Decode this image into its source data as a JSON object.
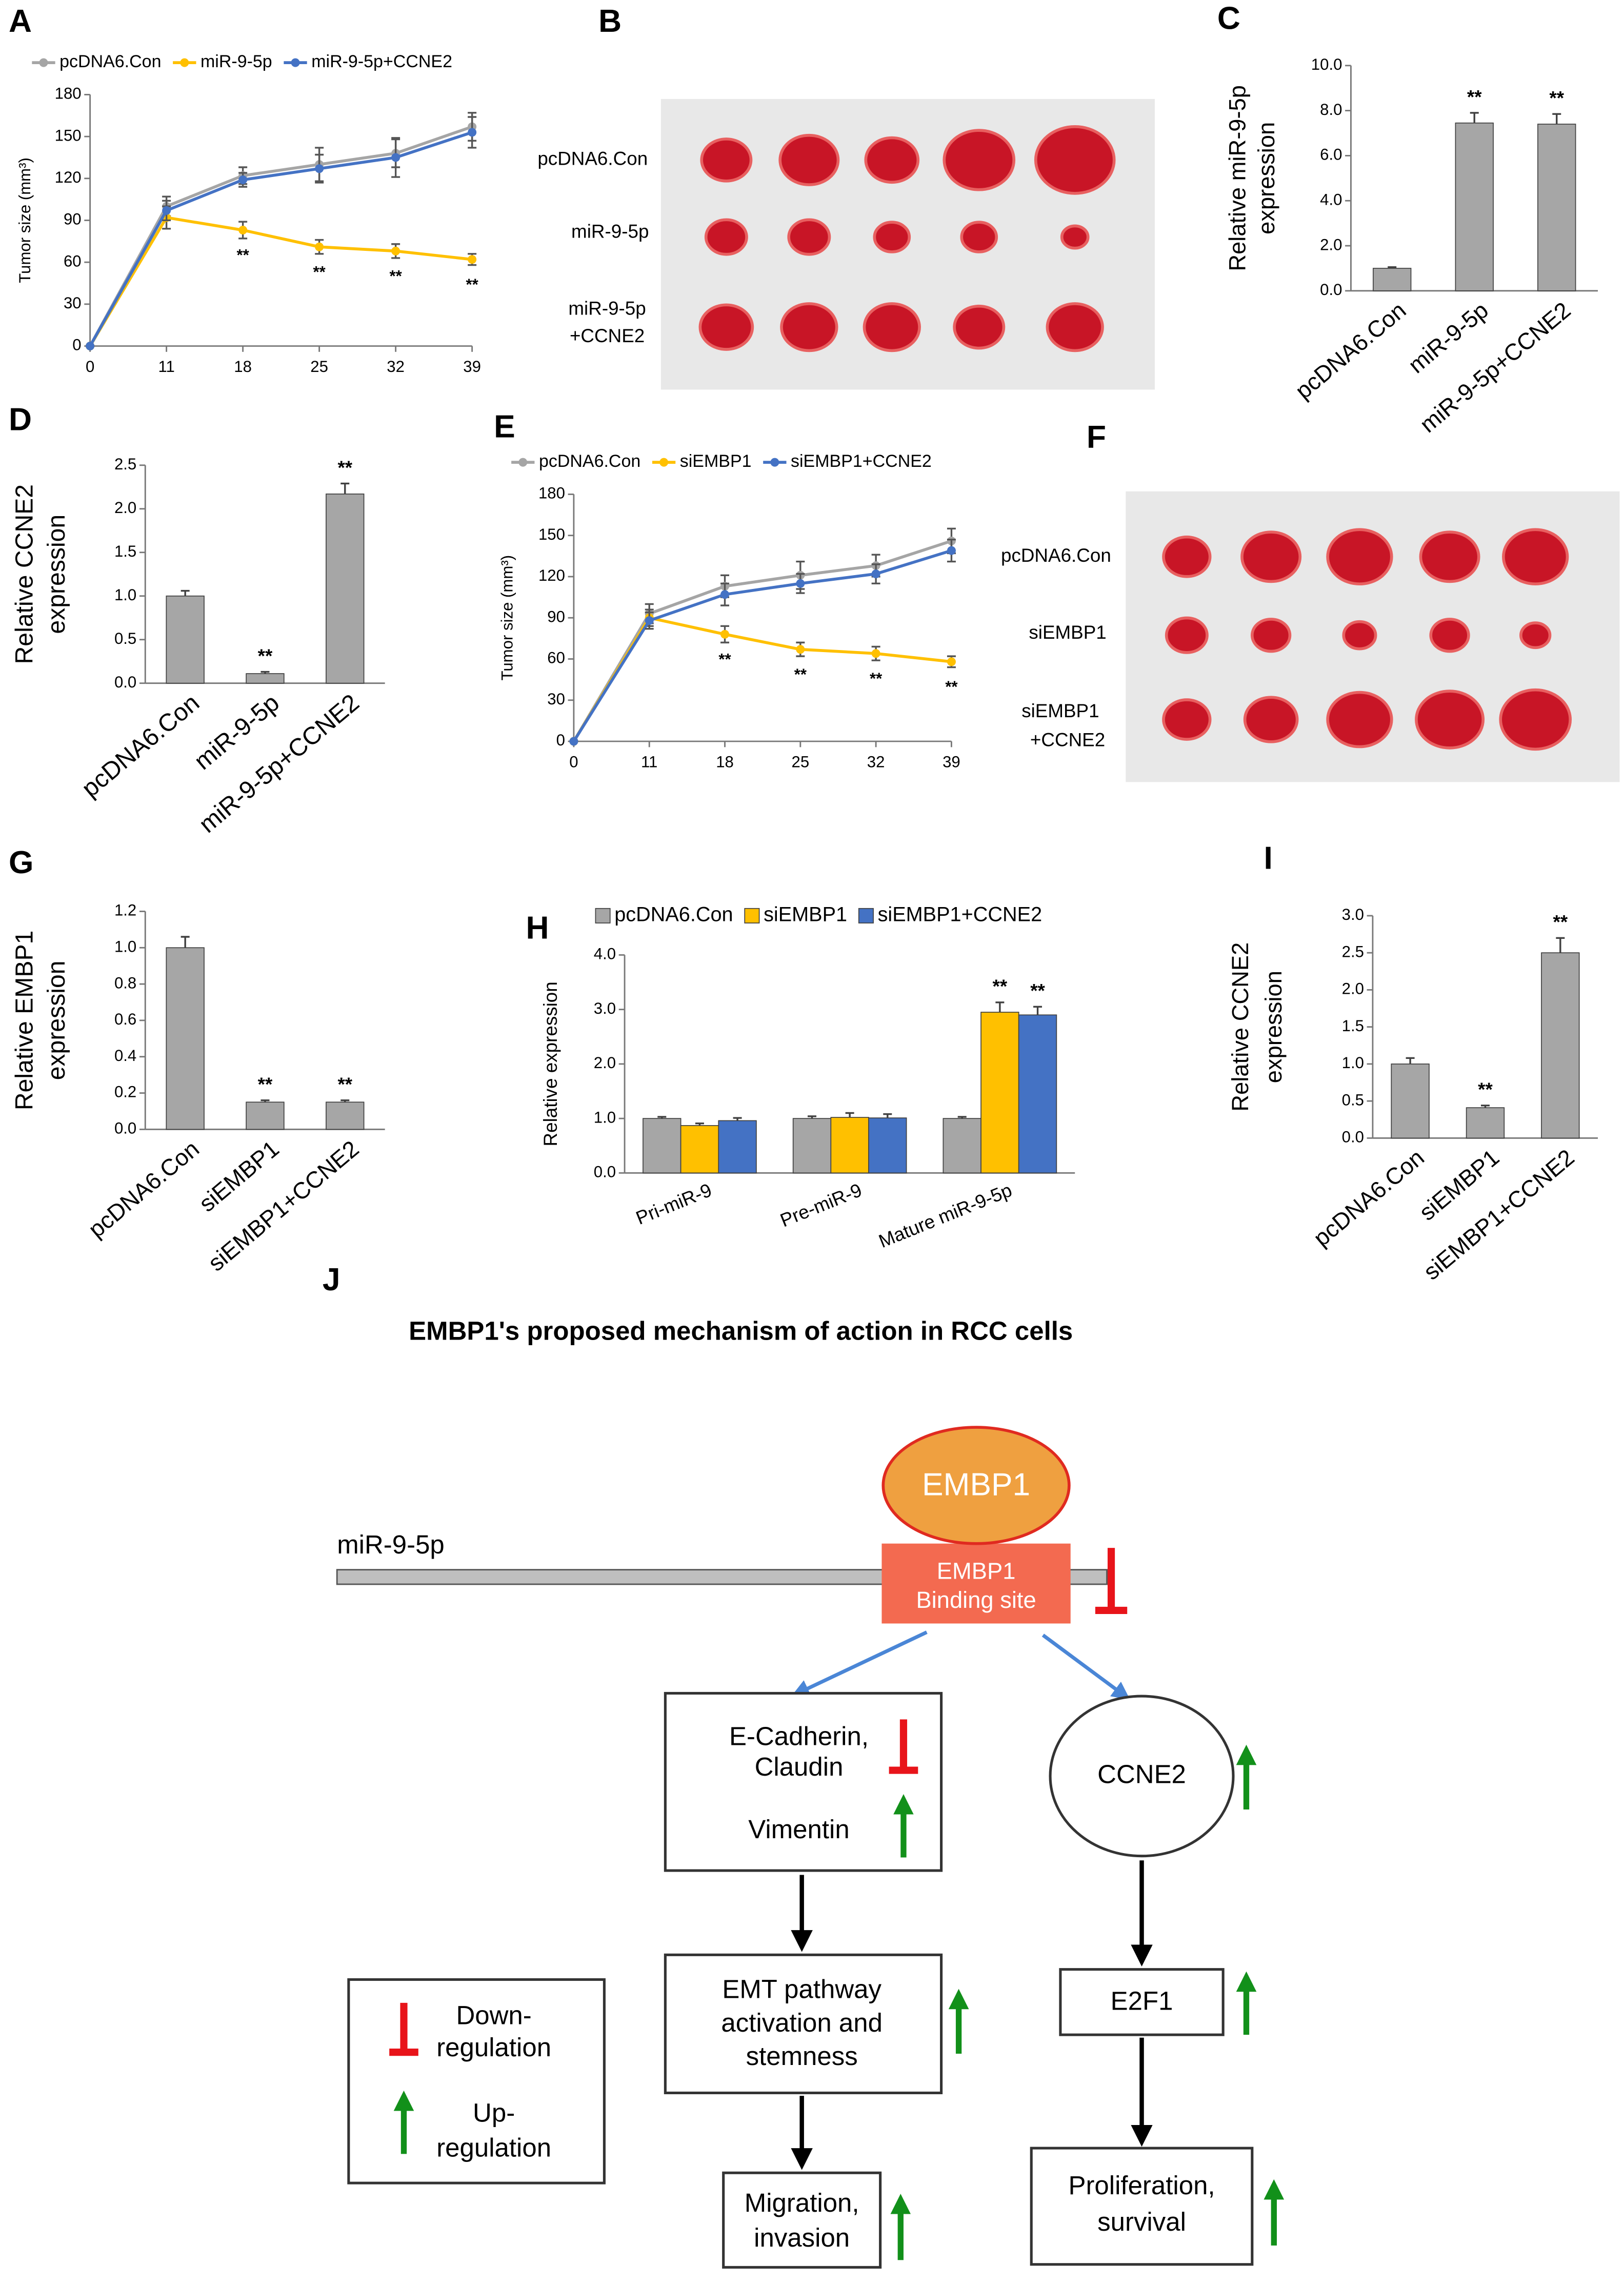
{
  "chart_data": [
    {
      "type": "line",
      "label": "A",
      "ylabel": "Tumor size (mm³)",
      "categories": [
        "0",
        "11",
        "18",
        "25",
        "32",
        "39"
      ],
      "ylim": [
        0,
        180
      ],
      "yticks": [
        0,
        30,
        60,
        90,
        120,
        150,
        180
      ],
      "series": [
        {
          "name": "pcDNA6.Con",
          "color": "#a5a5a5",
          "values": [
            0,
            100,
            122,
            130,
            138,
            157
          ],
          "errors": [
            0,
            7,
            6,
            12,
            10,
            10
          ]
        },
        {
          "name": "miR-9-5p",
          "color": "#ffc000",
          "values": [
            0,
            92,
            83,
            71,
            68,
            62
          ],
          "errors": [
            0,
            8,
            6,
            5,
            5,
            4
          ],
          "significance": [
            null,
            null,
            "**",
            "**",
            "**",
            "**"
          ]
        },
        {
          "name": "miR-9-5p+CCNE2",
          "color": "#4472c4",
          "values": [
            0,
            97,
            119,
            127,
            135,
            153
          ],
          "errors": [
            0,
            7,
            5,
            10,
            14,
            11
          ]
        }
      ]
    },
    {
      "type": "bar",
      "label": "C",
      "ylabel": [
        "Relative miR-9-5p",
        "expression"
      ],
      "categories": [
        "pcDNA6.Con",
        "miR-9-5p",
        "miR-9-5p+CCNE2"
      ],
      "color": "#a6a6a6",
      "values": [
        1.0,
        7.45,
        7.4
      ],
      "errors": [
        0.05,
        0.45,
        0.45
      ],
      "significance": [
        null,
        "**",
        "**"
      ],
      "ylim": [
        0,
        10
      ],
      "yticks": [
        {
          "value": 0,
          "label": "0.0"
        },
        {
          "value": 2,
          "label": "2.0"
        },
        {
          "value": 4,
          "label": "4.0"
        },
        {
          "value": 6,
          "label": "6.0"
        },
        {
          "value": 8,
          "label": "8.0"
        },
        {
          "value": 10,
          "label": "10.0"
        }
      ]
    },
    {
      "type": "bar",
      "label": "D",
      "ylabel": [
        "Relative CCNE2",
        "expression"
      ],
      "categories": [
        "pcDNA6.Con",
        "miR-9-5p",
        "miR-9-5p+CCNE2"
      ],
      "color": "#a6a6a6",
      "values": [
        1.0,
        0.11,
        2.17
      ],
      "errors": [
        0.06,
        0.02,
        0.12
      ],
      "significance": [
        null,
        "**",
        "**"
      ],
      "ylim": [
        0,
        2.5
      ],
      "yticks": [
        {
          "value": 0,
          "label": "0.0"
        },
        0.5,
        {
          "value": 1,
          "label": "1.0"
        },
        1.5,
        {
          "value": 2,
          "label": "2.0"
        },
        2.5
      ]
    },
    {
      "type": "line",
      "label": "E",
      "ylabel": "Tumor size (mm³)",
      "categories": [
        "0",
        "11",
        "18",
        "25",
        "32",
        "39"
      ],
      "ylim": [
        0,
        180
      ],
      "yticks": [
        0,
        30,
        60,
        90,
        120,
        150,
        180
      ],
      "series": [
        {
          "name": "pcDNA6.Con",
          "color": "#a5a5a5",
          "values": [
            0,
            93,
            113,
            121,
            128,
            146
          ],
          "errors": [
            0,
            7,
            8,
            10,
            8,
            9
          ]
        },
        {
          "name": "siEMBP1",
          "color": "#ffc000",
          "values": [
            0,
            90,
            78,
            67,
            64,
            58
          ],
          "errors": [
            0,
            6,
            6,
            5,
            5,
            4
          ],
          "significance": [
            null,
            null,
            "**",
            "**",
            "**",
            "**"
          ]
        },
        {
          "name": "siEMBP1+CCNE2",
          "color": "#4472c4",
          "values": [
            0,
            88,
            107,
            115,
            122,
            139
          ],
          "errors": [
            0,
            6,
            8,
            7,
            7,
            8
          ]
        }
      ]
    },
    {
      "type": "bar",
      "label": "G",
      "ylabel": [
        "Relative EMBP1",
        "expression"
      ],
      "categories": [
        "pcDNA6.Con",
        "siEMBP1",
        "siEMBP1+CCNE2"
      ],
      "color": "#a6a6a6",
      "values": [
        1.0,
        0.15,
        0.15
      ],
      "errors": [
        0.06,
        0.01,
        0.01
      ],
      "significance": [
        null,
        "**",
        "**"
      ],
      "ylim": [
        0,
        1.2
      ],
      "yticks": [
        {
          "value": 0,
          "label": "0.0"
        },
        0.2,
        0.4,
        0.6,
        0.8,
        {
          "value": 1,
          "label": "1.0"
        },
        1.2
      ]
    },
    {
      "type": "bar",
      "label": "H",
      "ylabel": "Relative expression",
      "categories": [
        "Pri-miR-9",
        "Pre-miR-9",
        "Mature miR-9-5p"
      ],
      "series": [
        {
          "name": "pcDNA6.Con",
          "color": "#a6a6a6",
          "values": [
            1.0,
            1.0,
            1.0
          ],
          "errors": [
            0.03,
            0.04,
            0.03
          ]
        },
        {
          "name": "siEMBP1",
          "color": "#ffc000",
          "values": [
            0.87,
            1.02,
            2.95
          ],
          "errors": [
            0.04,
            0.08,
            0.18
          ],
          "significance": [
            null,
            null,
            "**"
          ]
        },
        {
          "name": "siEMBP1+CCNE2",
          "color": "#4472c4",
          "values": [
            0.96,
            1.01,
            2.9
          ],
          "errors": [
            0.05,
            0.07,
            0.15
          ],
          "significance": [
            null,
            null,
            "**"
          ]
        }
      ],
      "ylim": [
        0,
        4
      ],
      "yticks": [
        {
          "value": 0,
          "label": "0.0"
        },
        {
          "value": 1,
          "label": "1.0"
        },
        {
          "value": 2,
          "label": "2.0"
        },
        {
          "value": 3,
          "label": "3.0"
        },
        {
          "value": 4,
          "label": "4.0"
        }
      ]
    },
    {
      "type": "bar",
      "label": "I",
      "ylabel": [
        "Relative CCNE2",
        "expression"
      ],
      "categories": [
        "pcDNA6.Con",
        "siEMBP1",
        "siEMBP1+CCNE2"
      ],
      "color": "#a6a6a6",
      "values": [
        1.0,
        0.41,
        2.5
      ],
      "errors": [
        0.08,
        0.03,
        0.2
      ],
      "significance": [
        null,
        "**",
        "**"
      ],
      "ylim": [
        0,
        3
      ],
      "yticks": [
        {
          "value": 0,
          "label": "0.0"
        },
        0.5,
        {
          "value": 1,
          "label": "1.0"
        },
        1.5,
        {
          "value": 2,
          "label": "2.0"
        },
        2.5,
        {
          "value": 3,
          "label": "3.0"
        }
      ]
    }
  ],
  "photos": [
    {
      "label": "B",
      "rows": [
        [
          "pcDNA6.Con"
        ],
        [
          "miR-9-5p"
        ],
        [
          "miR-9-5p",
          "+CCNE2"
        ]
      ]
    },
    {
      "label": "F",
      "rows": [
        [
          "pcDNA6.Con"
        ],
        [
          "siEMBP1"
        ],
        [
          "siEMBP1",
          "+CCNE2"
        ]
      ]
    }
  ],
  "diagram": {
    "label": "J",
    "title": "EMBP1's proposed mechanism of action in RCC cells",
    "strand": "miR-9-5p",
    "protein": "EMBP1",
    "binding_site": [
      "EMBP1",
      "Binding site"
    ],
    "markers": [
      "E-Cadherin,",
      "Claudin",
      "Vimentin"
    ],
    "ccne2": "CCNE2",
    "emt": [
      "EMT pathway",
      "activation and",
      "stemness"
    ],
    "e2f1": "E2F1",
    "migration": [
      "Migration,",
      "invasion"
    ],
    "proliferation": [
      "Proliferation,",
      "survival"
    ],
    "legend": {
      "down": [
        "Down-",
        "regulation"
      ],
      "up": [
        "Up-",
        "regulation"
      ]
    }
  }
}
